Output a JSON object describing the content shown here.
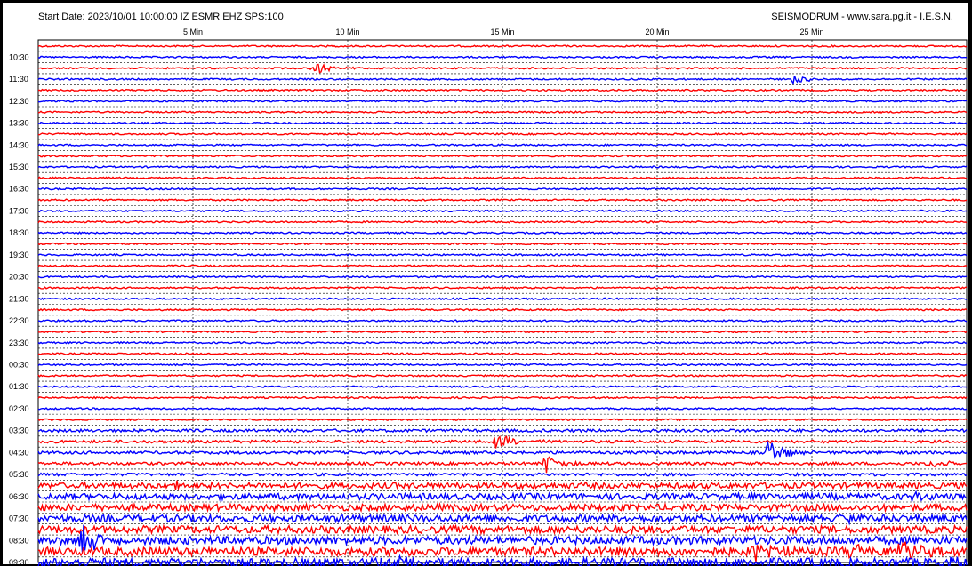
{
  "header": {
    "left": "Start Date: 2023/10/01 10:00:00 IZ ESMR EHZ SPS:100",
    "right": "SEISMODRUM - www.sara.pg.it - I.E.S.N."
  },
  "colors": {
    "odd_trace": "#ff0000",
    "even_trace": "#0000ff",
    "background": "#ffffff",
    "grid": "#000000"
  },
  "chart_data": {
    "type": "line",
    "title": "Start Date: 2023/10/01 10:00:00 IZ ESMR EHZ SPS:100",
    "xlabel": "",
    "ylabel": "",
    "x_minutes_per_line": 30,
    "x_ticks": [
      {
        "value": 5,
        "label": "5 Min"
      },
      {
        "value": 10,
        "label": "10 Min"
      },
      {
        "value": 15,
        "label": "15 Min"
      },
      {
        "value": 20,
        "label": "20 Min"
      },
      {
        "value": 25,
        "label": "25 Min"
      }
    ],
    "y_labels": [
      "10:30",
      "11:30",
      "12:30",
      "13:30",
      "14:30",
      "15:30",
      "16:30",
      "17:30",
      "18:30",
      "19:30",
      "20:30",
      "21:30",
      "22:30",
      "23:30",
      "00:30",
      "01:30",
      "02:30",
      "03:30",
      "04:30",
      "05:30",
      "06:30",
      "07:30",
      "08:30",
      "09:30"
    ],
    "trace_count": 48,
    "grid": true,
    "events": [
      {
        "line": 2,
        "minute": 8.9,
        "amplitude": 7
      },
      {
        "line": 3,
        "minute": 24.4,
        "amplitude": 5
      },
      {
        "line": 36,
        "minute": 14.8,
        "amplitude": 10
      },
      {
        "line": 37,
        "minute": 23.6,
        "amplitude": 16
      },
      {
        "line": 38,
        "minute": 16.4,
        "amplitude": 11
      },
      {
        "line": 38,
        "minute": 28.8,
        "amplitude": 6
      },
      {
        "line": 40,
        "minute": 4.5,
        "amplitude": 8
      },
      {
        "line": 41,
        "minute": 28.3,
        "amplitude": 6
      },
      {
        "line": 43,
        "minute": 25.8,
        "amplitude": 5
      },
      {
        "line": 45,
        "minute": 1.4,
        "amplitude": 18
      },
      {
        "line": 46,
        "minute": 23.1,
        "amplitude": 12
      },
      {
        "line": 46,
        "minute": 26.3,
        "amplitude": 12
      },
      {
        "line": 46,
        "minute": 27.9,
        "amplitude": 13
      },
      {
        "line": 47,
        "minute": 11.0,
        "amplitude": 12
      },
      {
        "line": 47,
        "minute": 29.3,
        "amplitude": 9
      }
    ]
  }
}
